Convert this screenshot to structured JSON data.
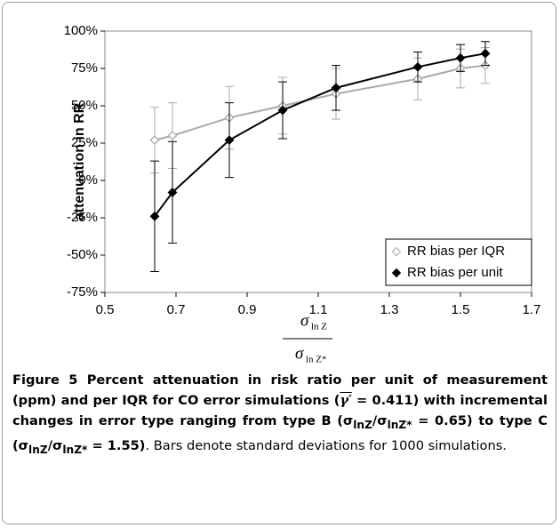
{
  "chart_data": {
    "type": "line",
    "y_label": "attenuation in RR",
    "x_label": {
      "numerator": "σ",
      "numerator_sub": "ln Z",
      "denominator": "σ",
      "denominator_sub": "ln Z*"
    },
    "x": [
      0.64,
      0.69,
      0.85,
      1.0,
      1.15,
      1.38,
      1.5,
      1.57
    ],
    "series": [
      {
        "name": "RR bias per IQR",
        "color": "#aaaaaa",
        "marker": "open-diamond",
        "values": [
          27,
          30,
          42,
          50,
          58,
          68,
          75,
          77
        ],
        "errors": [
          22,
          22,
          21,
          19,
          17,
          14,
          13,
          12
        ]
      },
      {
        "name": "RR bias per unit",
        "color": "#000000",
        "marker": "filled-diamond",
        "values": [
          -24,
          -8,
          27,
          47,
          62,
          76,
          82,
          85
        ],
        "errors": [
          37,
          34,
          25,
          19,
          15,
          10,
          9,
          8
        ]
      }
    ],
    "xlim": [
      0.5,
      1.7
    ],
    "xticks": [
      0.5,
      0.7,
      0.9,
      1.1,
      1.3,
      1.5,
      1.7
    ],
    "ylim": [
      -75,
      100
    ],
    "yticks": [
      {
        "value": -75,
        "label": "-75%"
      },
      {
        "value": -50,
        "label": "-50%"
      },
      {
        "value": -25,
        "label": "-25%"
      },
      {
        "value": 0,
        "label": "0%"
      },
      {
        "value": 25,
        "label": "25%"
      },
      {
        "value": 50,
        "label": "50%"
      },
      {
        "value": 75,
        "label": "75%"
      },
      {
        "value": 100,
        "label": "100%"
      }
    ],
    "legend": "lower right"
  },
  "caption": {
    "parts": [
      "Figure 5",
      " Percent attenuation in risk ratio per unit of measurement (ppm) and per IQR for CO error simulations (",
      "γ′",
      " = 0.411) with incremental changes in error type ranging from type B (",
      "σ",
      "lnZ",
      "/σ",
      "lnZ*",
      " = 0.65) to type C (",
      "σ",
      "lnZ",
      "/σ",
      "lnZ*",
      " = 1.55)",
      ". Bars denote standard deviations for 1000 simulations."
    ]
  }
}
